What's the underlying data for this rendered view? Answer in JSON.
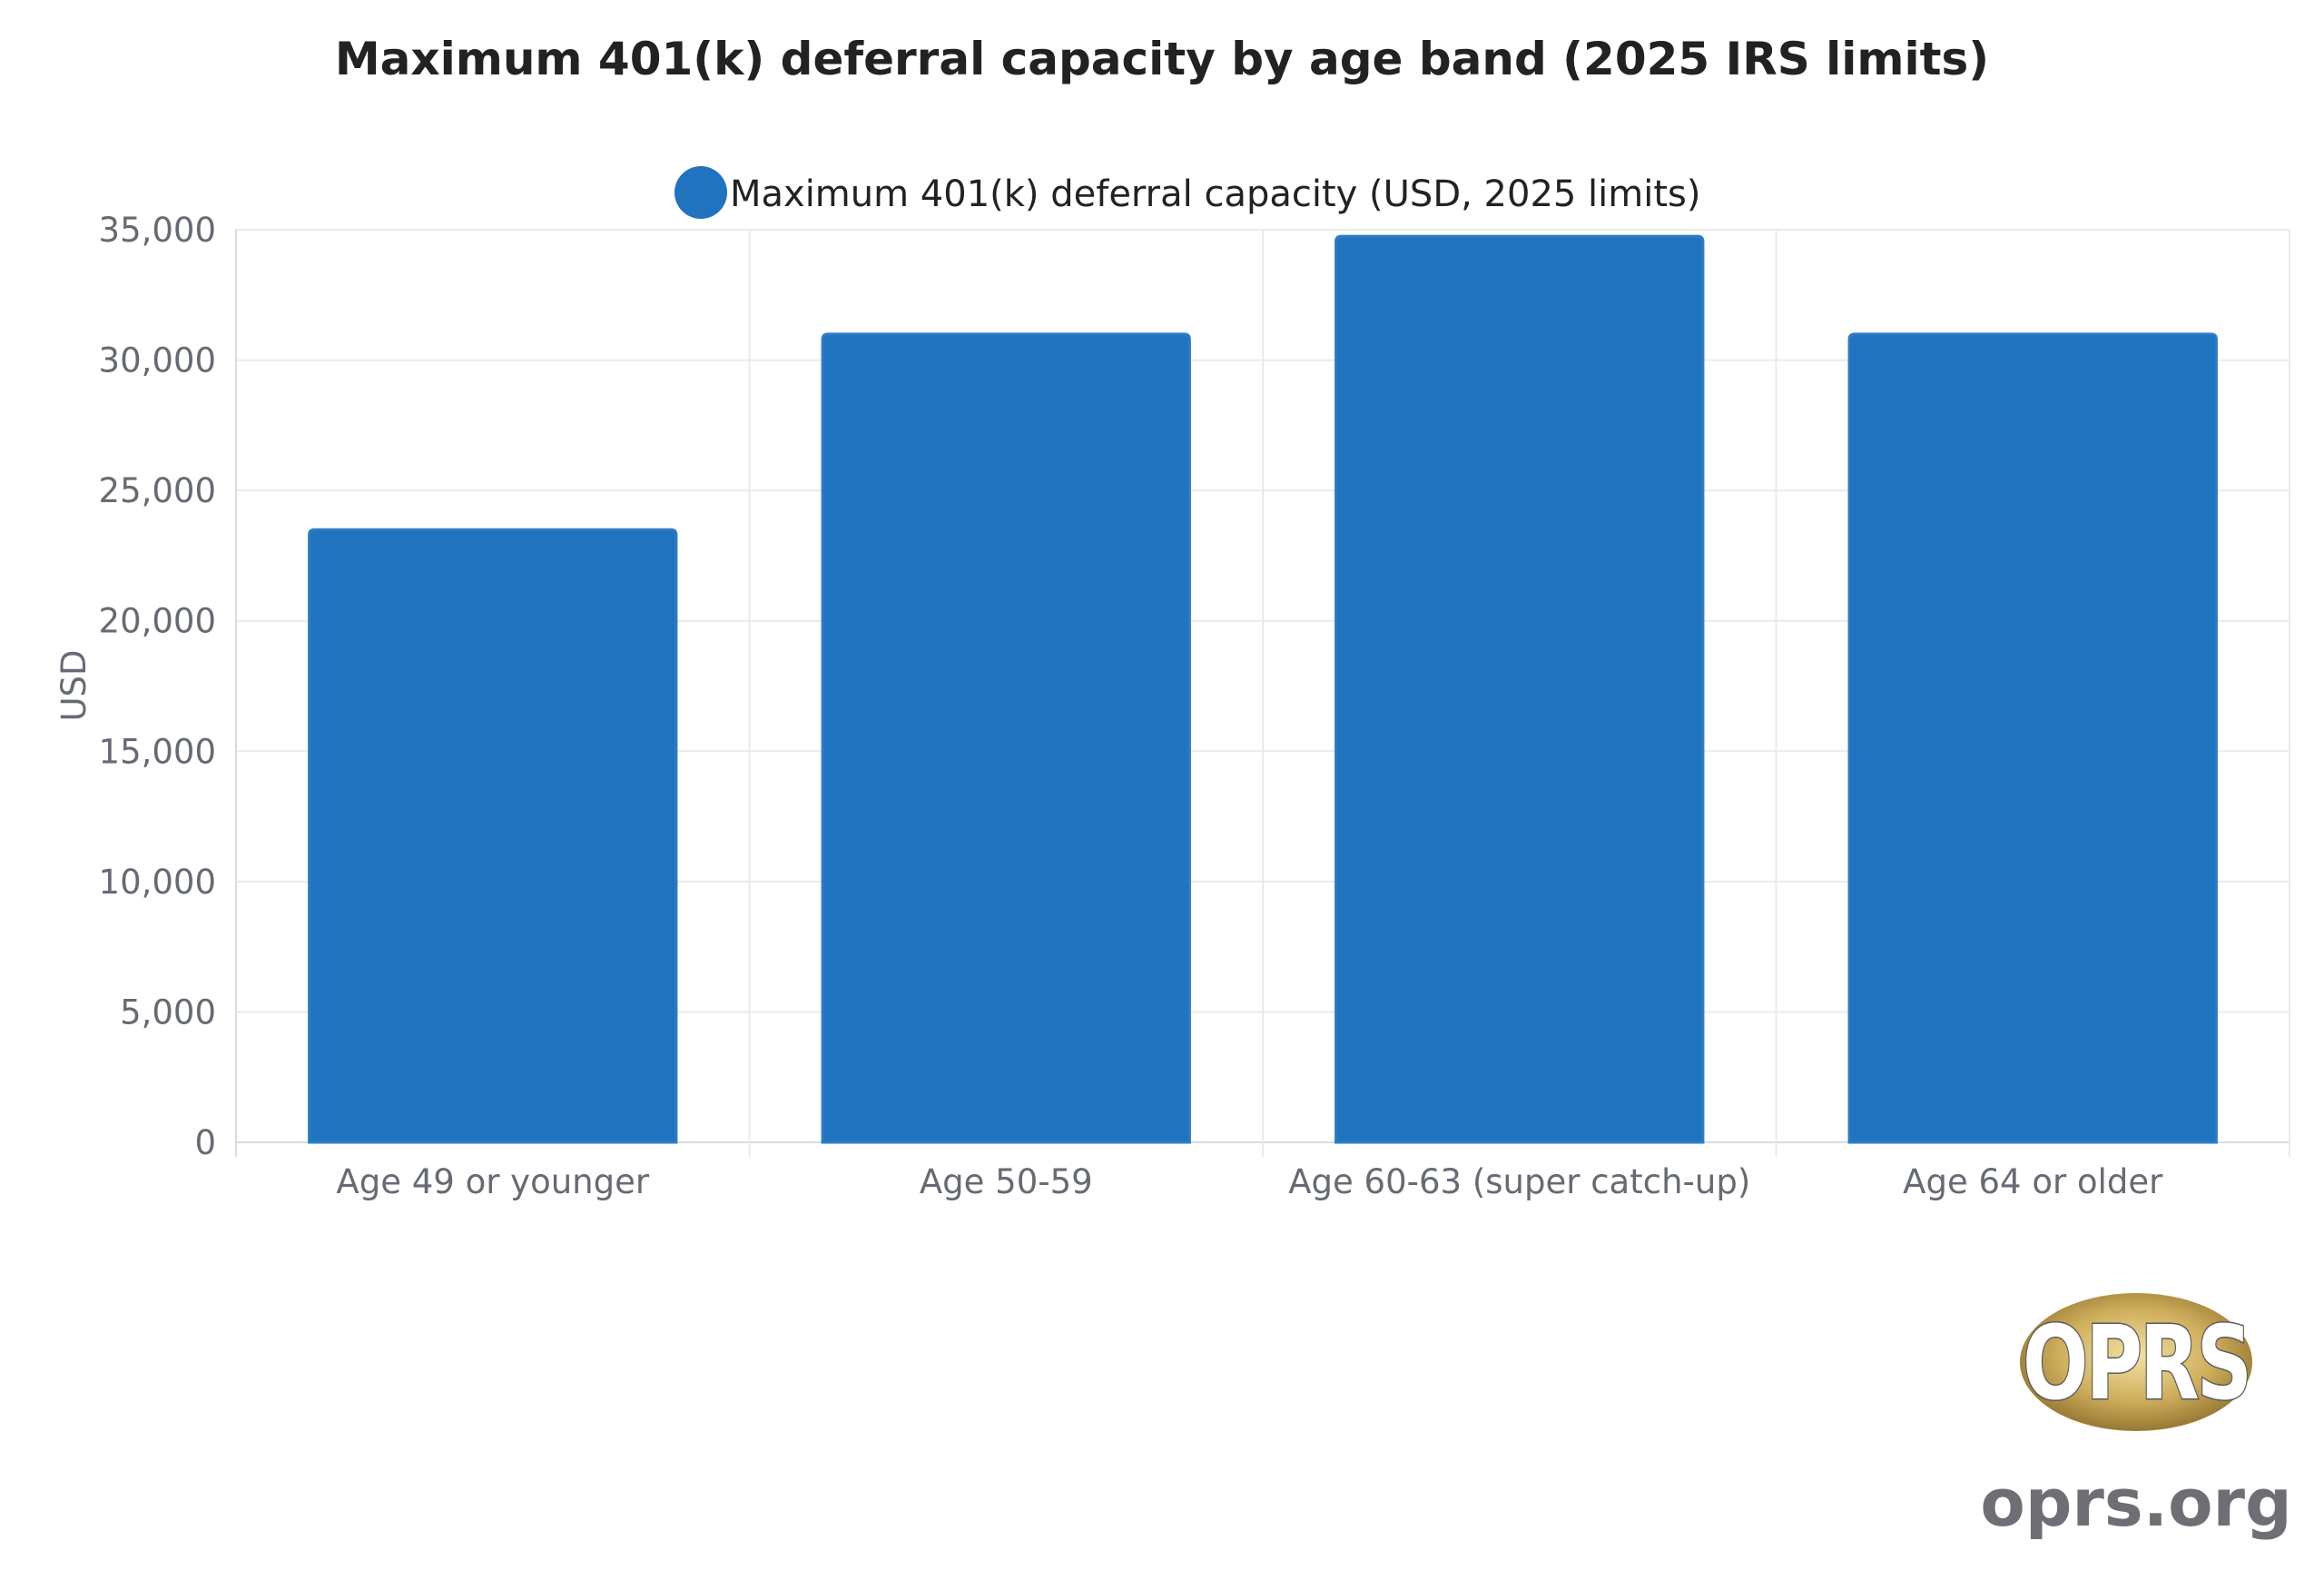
{
  "chart_data": {
    "type": "bar",
    "title": "Maximum 401(k) deferral capacity by age band (2025 IRS limits)",
    "ylabel": "USD",
    "xlabel": "",
    "categories": [
      "Age 49 or younger",
      "Age 50-59",
      "Age 60-63 (super catch-up)",
      "Age 64 or older"
    ],
    "series": [
      {
        "name": "Maximum 401(k) deferral capacity (USD, 2025 limits)",
        "values": [
          23500,
          31000,
          34750,
          31000
        ],
        "color": "#1f73bf"
      }
    ],
    "ylim": [
      0,
      35000
    ],
    "yticks": [
      0,
      5000,
      10000,
      15000,
      20000,
      25000,
      30000,
      35000
    ],
    "ytick_labels": [
      "0",
      "5,000",
      "10,000",
      "15,000",
      "20,000",
      "25,000",
      "30,000",
      "35,000"
    ],
    "grid": true,
    "legend_position": "top-center"
  },
  "watermark": {
    "logo_text": "OPRS",
    "site": "oprs.org"
  }
}
